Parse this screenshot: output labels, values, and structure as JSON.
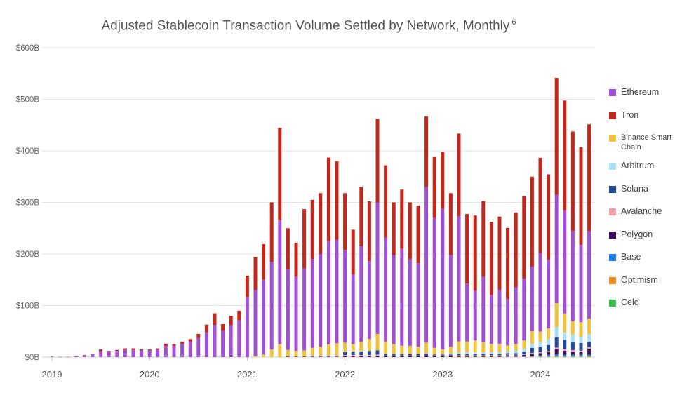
{
  "chart_data": {
    "type": "bar",
    "stacked": true,
    "title": "Adjusted Stablecoin Transaction Volume Settled by Network, Monthly",
    "title_footnote": "6",
    "xlabel": "",
    "ylabel": "",
    "x_start": "2019-01",
    "x_end": "2024-07",
    "x_tick_labels": [
      "2019",
      "2020",
      "2021",
      "2022",
      "2023",
      "2024"
    ],
    "y_tick_labels": [
      "$0B",
      "$100B",
      "$200B",
      "$300B",
      "$400B",
      "$500B",
      "$600B"
    ],
    "ylim": [
      0,
      600
    ],
    "unit": "$B",
    "grid": true,
    "legend_position": "right",
    "series": [
      {
        "name": "Ethereum",
        "color": "#a24fd8",
        "values": [
          1,
          0.5,
          0.5,
          2,
          3,
          5,
          11,
          11,
          12,
          14,
          14,
          13,
          13,
          15,
          22,
          22,
          26,
          30,
          37,
          48,
          62,
          51,
          62,
          71,
          116,
          128,
          145,
          170,
          240,
          156,
          144,
          159,
          172,
          180,
          200,
          201,
          180,
          135,
          185,
          151,
          255,
          202,
          173,
          188,
          168,
          162,
          302,
          252,
          273,
          178,
          243,
          112,
          96,
          127,
          95,
          105,
          90,
          110,
          120,
          125,
          152,
          133,
          210,
          200,
          175,
          150,
          170
        ]
      },
      {
        "name": "Tron",
        "color": "#c3261a",
        "values": [
          0,
          0,
          0,
          0,
          1,
          1,
          4,
          1,
          2,
          3,
          3,
          2,
          2,
          2,
          4,
          3,
          4,
          5,
          8,
          15,
          23,
          13,
          18,
          19,
          42,
          64,
          69,
          115,
          180,
          80,
          66,
          115,
          115,
          118,
          162,
          152,
          110,
          87,
          115,
          116,
          162,
          140,
          102,
          115,
          110,
          112,
          137,
          118,
          110,
          120,
          160,
          135,
          146,
          147,
          142,
          142,
          138,
          145,
          160,
          175,
          185,
          166,
          227,
          213,
          193,
          190,
          207
        ]
      },
      {
        "name": "Binance Smart Chain",
        "color": "#f2c23a",
        "values": [
          0,
          0,
          0,
          0,
          0,
          0,
          0,
          0,
          0,
          0,
          0,
          0,
          0,
          0,
          0,
          0,
          0,
          0,
          0,
          0,
          0,
          0,
          0,
          0,
          0,
          2,
          5,
          15,
          25,
          13,
          11,
          12,
          15,
          17,
          22,
          24,
          18,
          14,
          19,
          23,
          32,
          23,
          19,
          16,
          16,
          14,
          21,
          13,
          9,
          13,
          22,
          21,
          23,
          19,
          16,
          16,
          11,
          13,
          16,
          24,
          20,
          20,
          46,
          36,
          26,
          28,
          30
        ]
      },
      {
        "name": "Arbitrum",
        "color": "#a8e0f5",
        "values": [
          0,
          0,
          0,
          0,
          0,
          0,
          0,
          0,
          0,
          0,
          0,
          0,
          0,
          0,
          0,
          0,
          0,
          0,
          0,
          0,
          0,
          0,
          0,
          0,
          0,
          0,
          0,
          0,
          0,
          0,
          0,
          0,
          0,
          0,
          0,
          0,
          0,
          0,
          0,
          0,
          0,
          0,
          0,
          0,
          0,
          0,
          0,
          0,
          1,
          2,
          3,
          4,
          4,
          4,
          4,
          4,
          4,
          5,
          6,
          8,
          10,
          12,
          20,
          15,
          15,
          12,
          15
        ]
      },
      {
        "name": "Solana",
        "color": "#234a9a",
        "values": [
          0,
          0,
          0,
          0,
          0,
          0,
          0,
          0,
          0,
          0,
          0,
          0,
          0,
          0,
          0,
          0,
          0,
          0,
          0,
          0,
          0,
          0,
          0,
          0,
          0,
          0,
          0,
          0,
          0,
          0,
          0,
          0,
          1,
          1,
          1,
          1,
          6,
          7,
          7,
          8,
          8,
          4,
          3,
          3,
          3,
          3,
          4,
          2,
          2,
          2,
          2,
          2,
          2,
          2,
          2,
          2,
          3,
          3,
          5,
          10,
          10,
          12,
          20,
          18,
          15,
          15,
          10
        ]
      },
      {
        "name": "Avalanche",
        "color": "#f5a0a8",
        "values": [
          0,
          0,
          0,
          0,
          0,
          0,
          0,
          0,
          0,
          0,
          0,
          0,
          0,
          0,
          0,
          0,
          0,
          0,
          0,
          0,
          0,
          0,
          0,
          0,
          0,
          0,
          0,
          0,
          0,
          0,
          0,
          0,
          1,
          1,
          1,
          1,
          2,
          2,
          2,
          2,
          2,
          1,
          1,
          1,
          1,
          1,
          1,
          1,
          1,
          1,
          1,
          1,
          1,
          1,
          1,
          1,
          1,
          1,
          1,
          2,
          2,
          2,
          3,
          3,
          3,
          3,
          3
        ]
      },
      {
        "name": "Polygon",
        "color": "#3f1057",
        "values": [
          0,
          0,
          0,
          0,
          0,
          0,
          0,
          0,
          0,
          0,
          0,
          0,
          0,
          0,
          0,
          0,
          0,
          0,
          0,
          0,
          0,
          0,
          0,
          0,
          0,
          0,
          0,
          0,
          0,
          1,
          1,
          1,
          1,
          1,
          1,
          1,
          2,
          2,
          2,
          2,
          3,
          2,
          2,
          2,
          2,
          2,
          2,
          2,
          2,
          2,
          2,
          2,
          2,
          2,
          2,
          2,
          2,
          2,
          3,
          4,
          4,
          5,
          10,
          8,
          6,
          5,
          12
        ]
      },
      {
        "name": "Base",
        "color": "#1f7fe0",
        "values": [
          0,
          0,
          0,
          0,
          0,
          0,
          0,
          0,
          0,
          0,
          0,
          0,
          0,
          0,
          0,
          0,
          0,
          0,
          0,
          0,
          0,
          0,
          0,
          0,
          0,
          0,
          0,
          0,
          0,
          0,
          0,
          0,
          0,
          0,
          0,
          0,
          0,
          0,
          0,
          0,
          0,
          0,
          0,
          0,
          0,
          0,
          0,
          0,
          0,
          0,
          0,
          0,
          0,
          0,
          0,
          0,
          1,
          1,
          1,
          1,
          2,
          3,
          4,
          3,
          3,
          3,
          3
        ]
      },
      {
        "name": "Optimism",
        "color": "#f5891f",
        "values": [
          0,
          0,
          0,
          0,
          0,
          0,
          0,
          0,
          0,
          0,
          0,
          0,
          0,
          0,
          0,
          0,
          0,
          0,
          0,
          0,
          0,
          0,
          0,
          0,
          0,
          0,
          0,
          0,
          0,
          0,
          0,
          0,
          0,
          0,
          0,
          0,
          0,
          0,
          0,
          0,
          0,
          0,
          0,
          0,
          0,
          0,
          0,
          0,
          0,
          0,
          0.5,
          0.5,
          0.5,
          0.5,
          0.5,
          0.5,
          0.5,
          0.5,
          0.5,
          1,
          1,
          1,
          1,
          1,
          1,
          1,
          1
        ]
      },
      {
        "name": "Celo",
        "color": "#35c04a",
        "values": [
          0,
          0,
          0,
          0,
          0,
          0,
          0,
          0,
          0,
          0,
          0,
          0,
          0,
          0,
          0,
          0,
          0,
          0,
          0,
          0,
          0,
          0,
          0,
          0,
          0,
          0,
          0,
          0,
          0,
          0,
          0,
          0,
          0,
          0,
          0,
          0,
          0,
          0,
          0,
          0,
          0,
          0,
          0,
          0,
          0,
          0,
          0,
          0,
          0,
          0,
          0,
          0,
          0,
          0,
          0,
          0,
          0,
          0,
          0,
          0,
          0.5,
          0.5,
          0.5,
          0.5,
          0.5,
          0.5,
          0.5
        ]
      }
    ],
    "stack_order_bottom_up": [
      "Celo",
      "Optimism",
      "Base",
      "Polygon",
      "Avalanche",
      "Solana",
      "Arbitrum",
      "Binance Smart Chain",
      "Ethereum",
      "Tron"
    ]
  }
}
